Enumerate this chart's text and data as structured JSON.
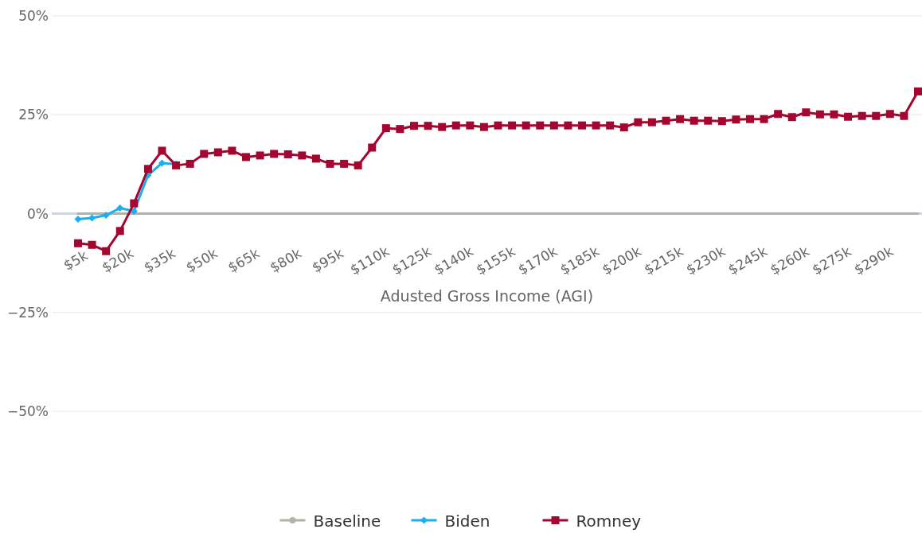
{
  "chart_data": {
    "type": "line",
    "xlabel": "Adusted Gross Income (AGI)",
    "categories": [
      "$5k",
      null,
      null,
      "$20k",
      null,
      null,
      "$35k",
      null,
      null,
      "$50k",
      null,
      null,
      "$65k",
      null,
      null,
      "$80k",
      null,
      null,
      "$95k",
      null,
      null,
      "$110k",
      null,
      null,
      "$125k",
      null,
      null,
      "$140k",
      null,
      null,
      "$155k",
      null,
      null,
      "$170k",
      null,
      null,
      "$185k",
      null,
      null,
      "$200k",
      null,
      null,
      "$215k",
      null,
      null,
      "$230k",
      null,
      null,
      "$245k",
      null,
      null,
      "$260k",
      null,
      null,
      "$275k",
      null,
      null,
      "$290k",
      null,
      null,
      null
    ],
    "ylim": [
      -50,
      50
    ],
    "yticks": [
      {
        "value": -50,
        "label": "−50%"
      },
      {
        "value": -25,
        "label": "−25%"
      },
      {
        "value": 0,
        "label": "0%"
      },
      {
        "value": 25,
        "label": "25%"
      },
      {
        "value": 50,
        "label": "50%"
      }
    ],
    "grid": "y",
    "legend": "bottom",
    "line_style": "solid",
    "series": [
      {
        "name": "Baseline",
        "color": "#b0b4a8",
        "marker": "none",
        "values": [
          0,
          0,
          0,
          0,
          0,
          0,
          0,
          0,
          0,
          0,
          0,
          0,
          0,
          0,
          0,
          0,
          0,
          0,
          0,
          0,
          0,
          0,
          0,
          0,
          0,
          0,
          0,
          0,
          0,
          0,
          0,
          0,
          0,
          0,
          0,
          0,
          0,
          0,
          0,
          0,
          0,
          0,
          0,
          0,
          0,
          0,
          0,
          0,
          0,
          0,
          0,
          0,
          0,
          0,
          0,
          0,
          0,
          0,
          0,
          0,
          0
        ]
      },
      {
        "name": "Biden",
        "color": "#1aaff0",
        "marker": "diamond",
        "values": [
          -1.4,
          -1.1,
          -0.4,
          1.4,
          0.6,
          9.7,
          12.8,
          12.5,
          null,
          null,
          null,
          null,
          null,
          null,
          null,
          null,
          null,
          null,
          null,
          null,
          null,
          null,
          null,
          null,
          null,
          null,
          null,
          null,
          null,
          null,
          null,
          null,
          null,
          null,
          null,
          null,
          null,
          null,
          null,
          null,
          null,
          null,
          null,
          null,
          null,
          null,
          null,
          null,
          null,
          null,
          null,
          null,
          null,
          null,
          null,
          null,
          null,
          null,
          null,
          null,
          null
        ]
      },
      {
        "name": "Romney",
        "color": "#a50630",
        "marker": "square",
        "values": [
          -7.5,
          -7.9,
          -9.5,
          -4.4,
          2.6,
          11.3,
          15.9,
          12.2,
          12.6,
          15.1,
          15.5,
          15.9,
          14.3,
          14.7,
          15.1,
          15,
          14.7,
          13.9,
          12.6,
          12.6,
          12.2,
          16.7,
          21.6,
          21.4,
          22.2,
          22.2,
          21.9,
          22.3,
          22.3,
          21.9,
          22.3,
          22.3,
          22.3,
          22.3,
          22.3,
          22.3,
          22.3,
          22.3,
          22.3,
          21.8,
          23.1,
          23.1,
          23.5,
          23.9,
          23.5,
          23.5,
          23.4,
          23.8,
          23.9,
          23.9,
          25.2,
          24.4,
          25.6,
          25.1,
          25.1,
          24.5,
          24.7,
          24.7,
          25.2,
          24.7,
          30.9
        ]
      }
    ]
  }
}
